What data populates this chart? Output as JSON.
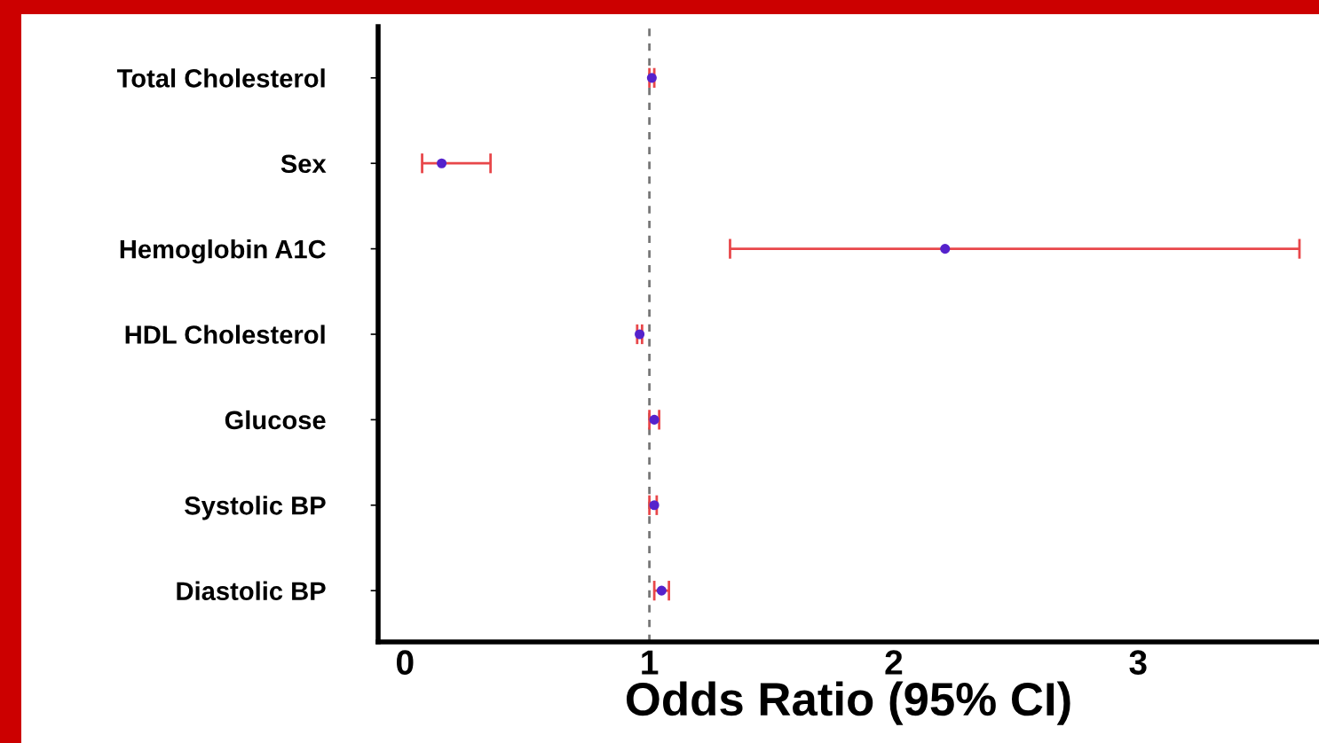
{
  "chart_data": {
    "type": "scatter",
    "orientation": "horizontal",
    "xlabel": "Odds Ratio (95% CI)",
    "categories": [
      "Total Cholesterol",
      "Sex",
      "Hemoglobin A1C",
      "HDL Cholesterol",
      "Glucose",
      "Systolic BP",
      "Diastolic BP"
    ],
    "series": [
      {
        "color": "#5522cc",
        "values": [
          1.01,
          0.15,
          2.21,
          0.96,
          1.02,
          1.02,
          1.05
        ],
        "errors": [
          [
            1.0,
            1.02
          ],
          [
            0.07,
            0.35
          ],
          [
            1.33,
            3.66
          ],
          [
            0.95,
            0.97
          ],
          [
            1.0,
            1.04
          ],
          [
            1.0,
            1.03
          ],
          [
            1.02,
            1.08
          ]
        ]
      }
    ],
    "xlim": [
      -0.11,
      3.74
    ],
    "xticks": [
      0,
      1,
      2,
      3
    ],
    "marker": "circle",
    "grid": false,
    "legend": false,
    "ref_lines": [
      {
        "axis": "x",
        "value": 1,
        "color": "#777777",
        "line_style": "dashed"
      }
    ]
  }
}
